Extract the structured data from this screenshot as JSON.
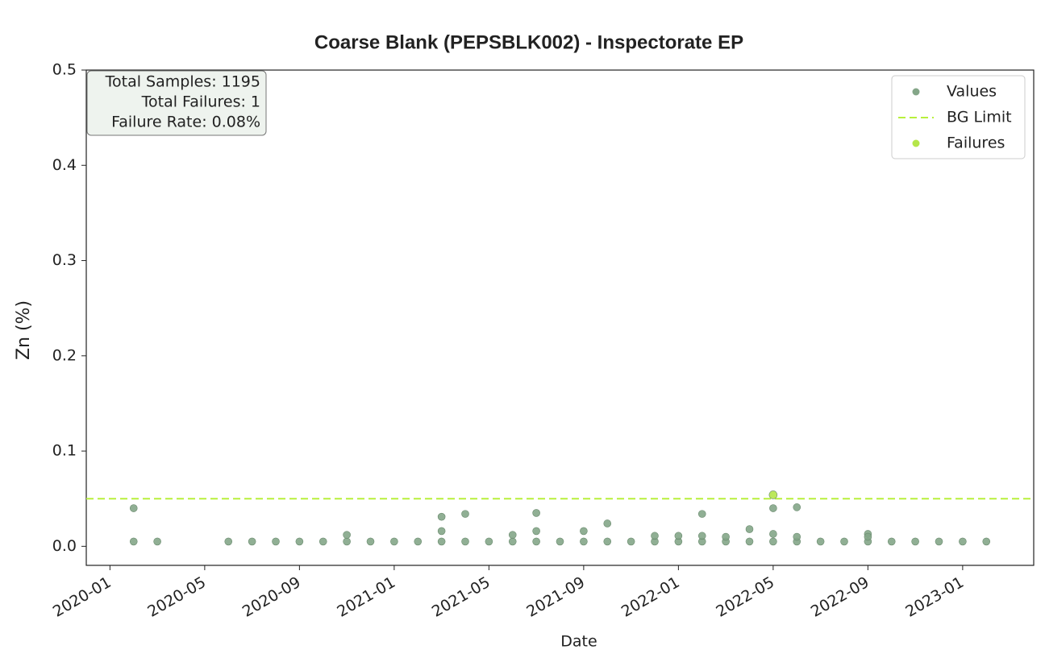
{
  "chart_data": {
    "type": "scatter",
    "title": "Coarse Blank (PEPSBLK002) - Inspectorate EP",
    "x_label": "Date",
    "y_label": "Zn (%)",
    "xlim": [
      "2019-12",
      "2023-04"
    ],
    "xticks": [
      "2020-01",
      "2020-05",
      "2020-09",
      "2021-01",
      "2021-05",
      "2021-09",
      "2022-01",
      "2022-05",
      "2022-09",
      "2023-01"
    ],
    "ylim": [
      -0.02,
      0.5
    ],
    "yticks": [
      {
        "value": 0,
        "label": "0.0"
      },
      0.1,
      0.2,
      0.3,
      0.4,
      0.5
    ],
    "grid": false,
    "legend": "upper right",
    "series": [
      {
        "name": "Values",
        "color": "#84a688",
        "x": [
          "2020-02",
          "2020-02",
          "2020-03",
          "2020-06",
          "2020-07",
          "2020-08",
          "2020-09",
          "2020-10",
          "2020-11",
          "2020-11",
          "2020-12",
          "2021-01",
          "2021-02",
          "2021-03",
          "2021-03",
          "2021-03",
          "2021-04",
          "2021-04",
          "2021-05",
          "2021-06",
          "2021-06",
          "2021-07",
          "2021-07",
          "2021-07",
          "2021-08",
          "2021-09",
          "2021-09",
          "2021-10",
          "2021-10",
          "2021-11",
          "2021-12",
          "2021-12",
          "2022-01",
          "2022-01",
          "2022-02",
          "2022-02",
          "2022-02",
          "2022-03",
          "2022-03",
          "2022-04",
          "2022-04",
          "2022-05",
          "2022-05",
          "2022-05",
          "2022-06",
          "2022-06",
          "2022-06",
          "2022-07",
          "2022-08",
          "2022-09",
          "2022-09",
          "2022-09",
          "2022-10",
          "2022-11",
          "2022-12",
          "2023-01",
          "2023-02"
        ],
        "values": [
          0.04,
          0.005,
          0.005,
          0.005,
          0.005,
          0.005,
          0.005,
          0.005,
          0.005,
          0.012,
          0.005,
          0.005,
          0.005,
          0.005,
          0.016,
          0.031,
          0.005,
          0.034,
          0.005,
          0.005,
          0.012,
          0.005,
          0.016,
          0.035,
          0.005,
          0.005,
          0.016,
          0.005,
          0.024,
          0.005,
          0.005,
          0.011,
          0.005,
          0.011,
          0.005,
          0.034,
          0.011,
          0.005,
          0.01,
          0.005,
          0.018,
          0.005,
          0.013,
          0.04,
          0.005,
          0.041,
          0.01,
          0.005,
          0.005,
          0.005,
          0.013,
          0.01,
          0.005,
          0.005,
          0.005,
          0.005,
          0.005
        ]
      },
      {
        "name": "Failures",
        "color": "#b5e64a",
        "x": [
          "2022-05"
        ],
        "values": [
          0.054
        ]
      }
    ],
    "bg_limit": {
      "name": "BG Limit",
      "value": 0.05,
      "color": "#b8f03c"
    },
    "annotations": [
      "Total Samples: 1195",
      "Total Failures: 1",
      "Failure Rate: 0.08%"
    ]
  }
}
